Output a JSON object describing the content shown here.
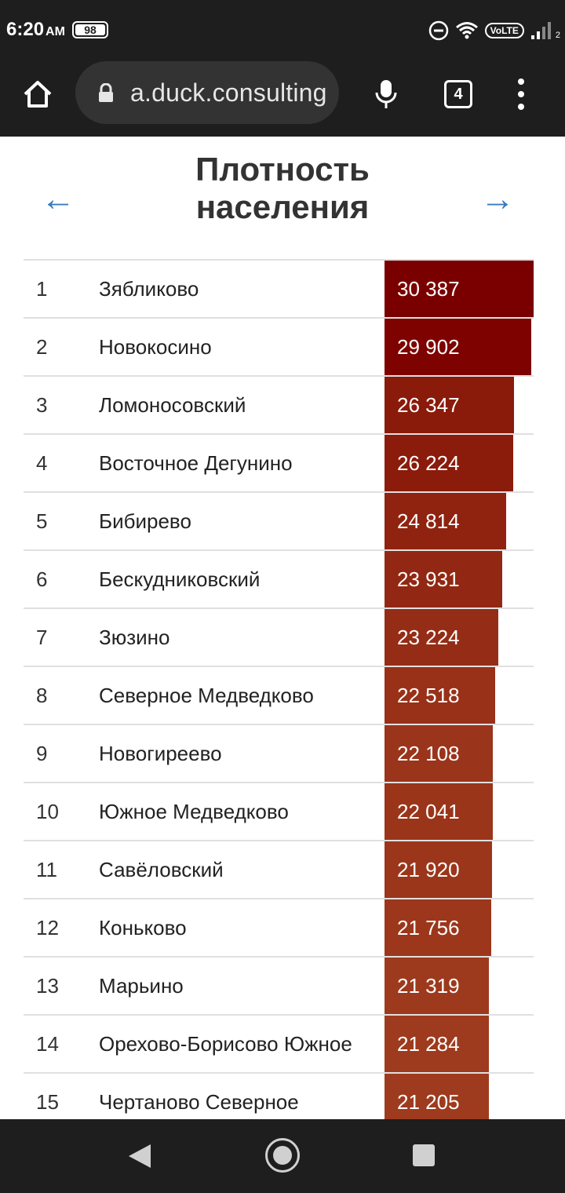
{
  "status_bar": {
    "time": "6:20",
    "ampm": "AM",
    "battery": "98",
    "volte": "VoLTE",
    "signal_sub": "2"
  },
  "browser": {
    "url": "a.duck.consulting",
    "tab_count": "4"
  },
  "page": {
    "title_line1": "Плотность",
    "title_line2": "населения",
    "prev_arrow": "←",
    "next_arrow": "→"
  },
  "chart_data": {
    "type": "bar",
    "title": "Плотность населения",
    "rows": [
      {
        "rank": "1",
        "name": "Зябликово",
        "label": "30 387",
        "value": 30387,
        "color": "#7a0000"
      },
      {
        "rank": "2",
        "name": "Новокосино",
        "label": "29 902",
        "value": 29902,
        "color": "#7d0200"
      },
      {
        "rank": "3",
        "name": "Ломоносовский",
        "label": "26 347",
        "value": 26347,
        "color": "#8a1a0a"
      },
      {
        "rank": "4",
        "name": "Восточное Дегунино",
        "label": "26 224",
        "value": 26224,
        "color": "#8b1b0b"
      },
      {
        "rank": "5",
        "name": "Бибирево",
        "label": "24 814",
        "value": 24814,
        "color": "#8f2310"
      },
      {
        "rank": "6",
        "name": "Бескудниковский",
        "label": "23 931",
        "value": 23931,
        "color": "#922813"
      },
      {
        "rank": "7",
        "name": "Зюзино",
        "label": "23 224",
        "value": 23224,
        "color": "#952d16"
      },
      {
        "rank": "8",
        "name": "Северное Медведково",
        "label": "22 518",
        "value": 22518,
        "color": "#983118"
      },
      {
        "rank": "9",
        "name": "Новогиреево",
        "label": "22 108",
        "value": 22108,
        "color": "#9a341a"
      },
      {
        "rank": "10",
        "name": "Южное Медведково",
        "label": "22 041",
        "value": 22041,
        "color": "#9a351a"
      },
      {
        "rank": "11",
        "name": "Савёловский",
        "label": "21 920",
        "value": 21920,
        "color": "#9b361b"
      },
      {
        "rank": "12",
        "name": "Коньково",
        "label": "21 756",
        "value": 21756,
        "color": "#9c371c"
      },
      {
        "rank": "13",
        "name": "Марьино",
        "label": "21 319",
        "value": 21319,
        "color": "#9d3a1d"
      },
      {
        "rank": "14",
        "name": "Орехово-Борисово Южное",
        "label": "21 284",
        "value": 21284,
        "color": "#9e3a1d"
      },
      {
        "rank": "15",
        "name": "Чертаново Северное",
        "label": "21 205",
        "value": 21205,
        "color": "#9e3b1e"
      }
    ]
  }
}
